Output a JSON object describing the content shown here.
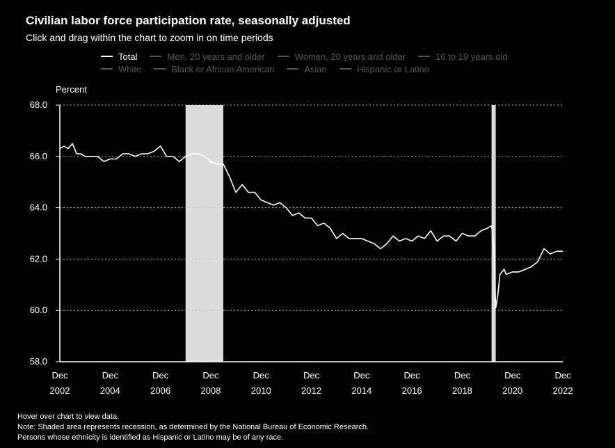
{
  "header": {
    "title": "Civilian labor force participation rate, seasonally adjusted",
    "subtitle": "Click and drag within the chart to zoom in on time periods"
  },
  "legend": {
    "row1": [
      {
        "label": "Total",
        "active": true
      },
      {
        "label": "Men, 20 years and older",
        "active": false
      },
      {
        "label": "Women, 20 years and older",
        "active": false
      },
      {
        "label": "16 to 19 years old",
        "active": false
      }
    ],
    "row2": [
      {
        "label": "White",
        "active": false
      },
      {
        "label": "Black or African American",
        "active": false
      },
      {
        "label": "Asian",
        "active": false
      },
      {
        "label": "Hispanic or Latino",
        "active": false
      }
    ]
  },
  "notes": {
    "hover": "Hover over chart to view data.",
    "recession": "Note: Shaded area represents recession, as determined by the National Bureau of Economic Research.",
    "hispanic": "Persons whose ethnicity is identified as Hispanic or Latino may be of any race."
  },
  "colors": {
    "background": "#000000",
    "line": "#ffffff",
    "recession": "#dcdcdc",
    "inactive_legend": "#555555"
  },
  "chart_data": {
    "type": "line",
    "ylabel": "Percent",
    "ylim": [
      58.0,
      68.0
    ],
    "yticks": [
      "58.0",
      "60.0",
      "62.0",
      "64.0",
      "66.0",
      "68.0"
    ],
    "xlim": [
      "2002-12",
      "2022-12"
    ],
    "xticks": [
      {
        "month": "Dec",
        "year": "2002"
      },
      {
        "month": "Dec",
        "year": "2004"
      },
      {
        "month": "Dec",
        "year": "2006"
      },
      {
        "month": "Dec",
        "year": "2008"
      },
      {
        "month": "Dec",
        "year": "2010"
      },
      {
        "month": "Dec",
        "year": "2012"
      },
      {
        "month": "Dec",
        "year": "2014"
      },
      {
        "month": "Dec",
        "year": "2016"
      },
      {
        "month": "Dec",
        "year": "2018"
      },
      {
        "month": "Dec",
        "year": "2020"
      },
      {
        "month": "Dec",
        "year": "2022"
      }
    ],
    "grid": true,
    "recessions": [
      {
        "start": "2007-12",
        "end": "2009-06"
      },
      {
        "start": "2020-02",
        "end": "2020-04"
      }
    ],
    "series": [
      {
        "name": "Total",
        "points": [
          {
            "x": "2002-12",
            "y": 66.3
          },
          {
            "x": "2003-02",
            "y": 66.4
          },
          {
            "x": "2003-04",
            "y": 66.3
          },
          {
            "x": "2003-06",
            "y": 66.5
          },
          {
            "x": "2003-08",
            "y": 66.1
          },
          {
            "x": "2003-10",
            "y": 66.1
          },
          {
            "x": "2003-12",
            "y": 66.0
          },
          {
            "x": "2004-03",
            "y": 66.0
          },
          {
            "x": "2004-06",
            "y": 66.0
          },
          {
            "x": "2004-09",
            "y": 65.8
          },
          {
            "x": "2004-12",
            "y": 65.9
          },
          {
            "x": "2005-03",
            "y": 65.9
          },
          {
            "x": "2005-06",
            "y": 66.1
          },
          {
            "x": "2005-09",
            "y": 66.1
          },
          {
            "x": "2005-12",
            "y": 66.0
          },
          {
            "x": "2006-03",
            "y": 66.1
          },
          {
            "x": "2006-06",
            "y": 66.1
          },
          {
            "x": "2006-09",
            "y": 66.2
          },
          {
            "x": "2006-12",
            "y": 66.4
          },
          {
            "x": "2007-03",
            "y": 66.0
          },
          {
            "x": "2007-06",
            "y": 66.0
          },
          {
            "x": "2007-09",
            "y": 65.8
          },
          {
            "x": "2007-12",
            "y": 66.0
          },
          {
            "x": "2008-03",
            "y": 66.1
          },
          {
            "x": "2008-06",
            "y": 66.1
          },
          {
            "x": "2008-09",
            "y": 66.0
          },
          {
            "x": "2008-12",
            "y": 65.8
          },
          {
            "x": "2009-03",
            "y": 65.7
          },
          {
            "x": "2009-06",
            "y": 65.7
          },
          {
            "x": "2009-09",
            "y": 65.2
          },
          {
            "x": "2009-12",
            "y": 64.6
          },
          {
            "x": "2010-03",
            "y": 64.9
          },
          {
            "x": "2010-06",
            "y": 64.6
          },
          {
            "x": "2010-09",
            "y": 64.6
          },
          {
            "x": "2010-12",
            "y": 64.3
          },
          {
            "x": "2011-03",
            "y": 64.2
          },
          {
            "x": "2011-06",
            "y": 64.1
          },
          {
            "x": "2011-09",
            "y": 64.2
          },
          {
            "x": "2011-12",
            "y": 64.0
          },
          {
            "x": "2012-03",
            "y": 63.7
          },
          {
            "x": "2012-06",
            "y": 63.8
          },
          {
            "x": "2012-09",
            "y": 63.6
          },
          {
            "x": "2012-12",
            "y": 63.6
          },
          {
            "x": "2013-03",
            "y": 63.3
          },
          {
            "x": "2013-06",
            "y": 63.4
          },
          {
            "x": "2013-09",
            "y": 63.2
          },
          {
            "x": "2013-12",
            "y": 62.8
          },
          {
            "x": "2014-03",
            "y": 63.0
          },
          {
            "x": "2014-06",
            "y": 62.8
          },
          {
            "x": "2014-09",
            "y": 62.8
          },
          {
            "x": "2014-12",
            "y": 62.8
          },
          {
            "x": "2015-03",
            "y": 62.7
          },
          {
            "x": "2015-06",
            "y": 62.6
          },
          {
            "x": "2015-09",
            "y": 62.4
          },
          {
            "x": "2015-12",
            "y": 62.6
          },
          {
            "x": "2016-03",
            "y": 62.9
          },
          {
            "x": "2016-06",
            "y": 62.7
          },
          {
            "x": "2016-09",
            "y": 62.8
          },
          {
            "x": "2016-12",
            "y": 62.7
          },
          {
            "x": "2017-03",
            "y": 62.9
          },
          {
            "x": "2017-06",
            "y": 62.8
          },
          {
            "x": "2017-09",
            "y": 63.1
          },
          {
            "x": "2017-12",
            "y": 62.7
          },
          {
            "x": "2018-03",
            "y": 62.9
          },
          {
            "x": "2018-06",
            "y": 62.9
          },
          {
            "x": "2018-09",
            "y": 62.7
          },
          {
            "x": "2018-12",
            "y": 63.0
          },
          {
            "x": "2019-03",
            "y": 62.9
          },
          {
            "x": "2019-06",
            "y": 62.9
          },
          {
            "x": "2019-09",
            "y": 63.1
          },
          {
            "x": "2019-12",
            "y": 63.2
          },
          {
            "x": "2020-02",
            "y": 63.3
          },
          {
            "x": "2020-03",
            "y": 62.6
          },
          {
            "x": "2020-04",
            "y": 60.1
          },
          {
            "x": "2020-05",
            "y": 60.6
          },
          {
            "x": "2020-06",
            "y": 61.4
          },
          {
            "x": "2020-08",
            "y": 61.6
          },
          {
            "x": "2020-09",
            "y": 61.4
          },
          {
            "x": "2020-12",
            "y": 61.5
          },
          {
            "x": "2021-03",
            "y": 61.5
          },
          {
            "x": "2021-06",
            "y": 61.6
          },
          {
            "x": "2021-09",
            "y": 61.7
          },
          {
            "x": "2021-12",
            "y": 61.9
          },
          {
            "x": "2022-03",
            "y": 62.4
          },
          {
            "x": "2022-06",
            "y": 62.2
          },
          {
            "x": "2022-09",
            "y": 62.3
          },
          {
            "x": "2022-12",
            "y": 62.3
          }
        ]
      }
    ]
  }
}
